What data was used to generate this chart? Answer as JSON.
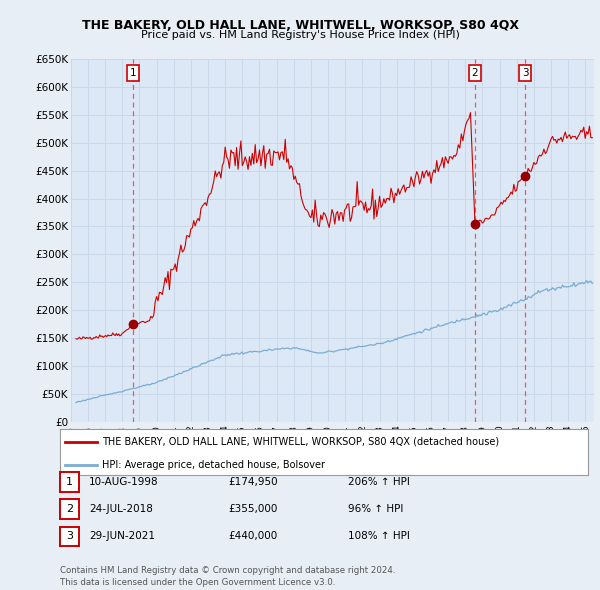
{
  "title": "THE BAKERY, OLD HALL LANE, WHITWELL, WORKSOP, S80 4QX",
  "subtitle": "Price paid vs. HM Land Registry's House Price Index (HPI)",
  "red_label": "THE BAKERY, OLD HALL LANE, WHITWELL, WORKSOP, S80 4QX (detached house)",
  "blue_label": "HPI: Average price, detached house, Bolsover",
  "footer": "Contains HM Land Registry data © Crown copyright and database right 2024.\nThis data is licensed under the Open Government Licence v3.0.",
  "sales": [
    {
      "num": 1,
      "date": "10-AUG-1998",
      "price": 174950,
      "pct": "206%",
      "dir": "↑"
    },
    {
      "num": 2,
      "date": "24-JUL-2018",
      "price": 355000,
      "pct": "96%",
      "dir": "↑"
    },
    {
      "num": 3,
      "date": "29-JUN-2021",
      "price": 440000,
      "pct": "108%",
      "dir": "↑"
    }
  ],
  "sale_years": [
    1998.61,
    2018.56,
    2021.49
  ],
  "sale_prices": [
    174950,
    355000,
    440000
  ],
  "ylim": [
    0,
    650000
  ],
  "yticks": [
    0,
    50000,
    100000,
    150000,
    200000,
    250000,
    300000,
    350000,
    400000,
    450000,
    500000,
    550000,
    600000,
    650000
  ],
  "xlim_start": 1995.3,
  "xlim_end": 2025.5,
  "bg_color": "#e8eef5",
  "plot_bg": "#dce8f5",
  "red_color": "#cc0000",
  "blue_color": "#7aadd4",
  "vline_color": "#e06060",
  "grid_color": "#c8d8e8",
  "marker_box_color": "#cc0000"
}
